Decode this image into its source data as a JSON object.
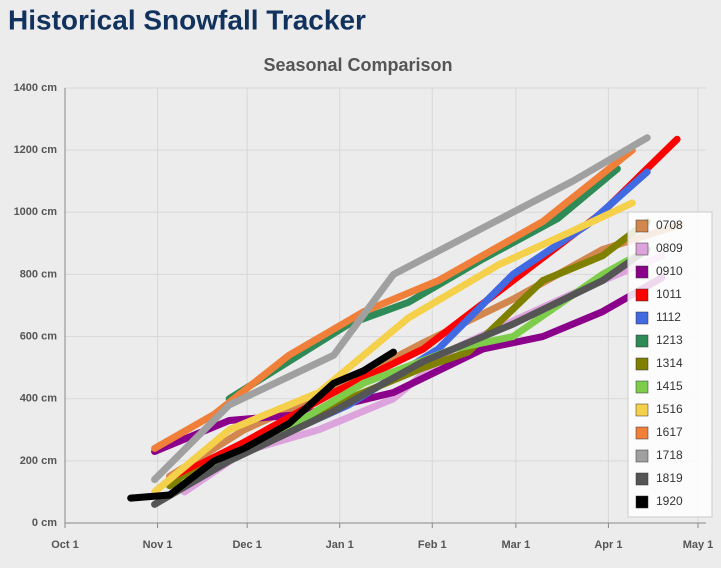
{
  "chart_data": {
    "type": "line",
    "title": "Historical Snowfall Tracker",
    "subtitle": "Seasonal Comparison",
    "xlim": [
      0,
      212
    ],
    "xticks": [
      {
        "value": 0,
        "label": "Oct 1"
      },
      {
        "value": 31,
        "label": "Nov 1"
      },
      {
        "value": 61,
        "label": "Dec 1"
      },
      {
        "value": 92,
        "label": "Jan 1"
      },
      {
        "value": 123,
        "label": "Feb 1"
      },
      {
        "value": 151,
        "label": "Mar 1"
      },
      {
        "value": 182,
        "label": "Apr 1"
      },
      {
        "value": 212,
        "label": "May 1"
      }
    ],
    "ylim": [
      0,
      1400
    ],
    "yticks": [
      {
        "value": 0,
        "label": "0 cm"
      },
      {
        "value": 200,
        "label": "200 cm"
      },
      {
        "value": 400,
        "label": "400 cm"
      },
      {
        "value": 600,
        "label": "600 cm"
      },
      {
        "value": 800,
        "label": "800 cm"
      },
      {
        "value": 1000,
        "label": "1000 cm"
      },
      {
        "value": 1200,
        "label": "1200 cm"
      },
      {
        "value": 1400,
        "label": "1400 cm"
      }
    ],
    "grid": true,
    "legend": "right",
    "series": [
      {
        "name": "0708",
        "color": "#d2874e",
        "x": [
          35,
          60,
          90,
          120,
          150,
          180,
          206
        ],
        "values": [
          150,
          300,
          430,
          580,
          720,
          880,
          960
        ]
      },
      {
        "name": "0809",
        "color": "#dda3dd",
        "x": [
          40,
          60,
          85,
          110,
          130,
          150,
          175,
          200
        ],
        "values": [
          100,
          230,
          300,
          400,
          560,
          650,
          760,
          860
        ]
      },
      {
        "name": "0910",
        "color": "#8b008b",
        "x": [
          30,
          55,
          80,
          110,
          140,
          160,
          180,
          200
        ],
        "values": [
          230,
          330,
          350,
          420,
          560,
          600,
          680,
          790
        ]
      },
      {
        "name": "1011",
        "color": "#ff0000",
        "x": [
          35,
          60,
          90,
          120,
          150,
          180,
          205
        ],
        "values": [
          140,
          260,
          420,
          560,
          780,
          1000,
          1235
        ]
      },
      {
        "name": "1112",
        "color": "#4169e1",
        "x": [
          40,
          65,
          95,
          125,
          150,
          175,
          195
        ],
        "values": [
          140,
          250,
          380,
          560,
          800,
          960,
          1130
        ]
      },
      {
        "name": "1213",
        "color": "#2e8b57",
        "x": [
          55,
          75,
          95,
          115,
          140,
          165,
          185
        ],
        "values": [
          400,
          520,
          640,
          710,
          850,
          980,
          1140
        ]
      },
      {
        "name": "1314",
        "color": "#808000",
        "x": [
          35,
          60,
          90,
          120,
          135,
          160,
          180,
          195
        ],
        "values": [
          120,
          240,
          380,
          500,
          550,
          780,
          860,
          970
        ]
      },
      {
        "name": "1415",
        "color": "#7dcd4a",
        "x": [
          40,
          70,
          100,
          130,
          150,
          180,
          195
        ],
        "values": [
          130,
          280,
          450,
          560,
          600,
          800,
          880
        ]
      },
      {
        "name": "1516",
        "color": "#f5d04a",
        "x": [
          30,
          55,
          85,
          115,
          145,
          170,
          190
        ],
        "values": [
          100,
          300,
          420,
          660,
          830,
          940,
          1030
        ]
      },
      {
        "name": "1617",
        "color": "#f07f3a",
        "x": [
          30,
          50,
          75,
          100,
          125,
          160,
          190
        ],
        "values": [
          240,
          350,
          540,
          680,
          780,
          970,
          1200
        ]
      },
      {
        "name": "1718",
        "color": "#a0a0a0",
        "x": [
          30,
          55,
          90,
          110,
          140,
          170,
          195
        ],
        "values": [
          140,
          380,
          540,
          800,
          950,
          1100,
          1240
        ]
      },
      {
        "name": "1819",
        "color": "#555555",
        "x": [
          30,
          55,
          90,
          120,
          150,
          180,
          195
        ],
        "values": [
          60,
          200,
          360,
          520,
          640,
          780,
          880
        ]
      },
      {
        "name": "1920",
        "color": "#000000",
        "x": [
          22,
          35,
          50,
          60,
          75,
          90,
          100,
          110
        ],
        "values": [
          80,
          90,
          200,
          240,
          320,
          450,
          490,
          550
        ]
      }
    ]
  }
}
